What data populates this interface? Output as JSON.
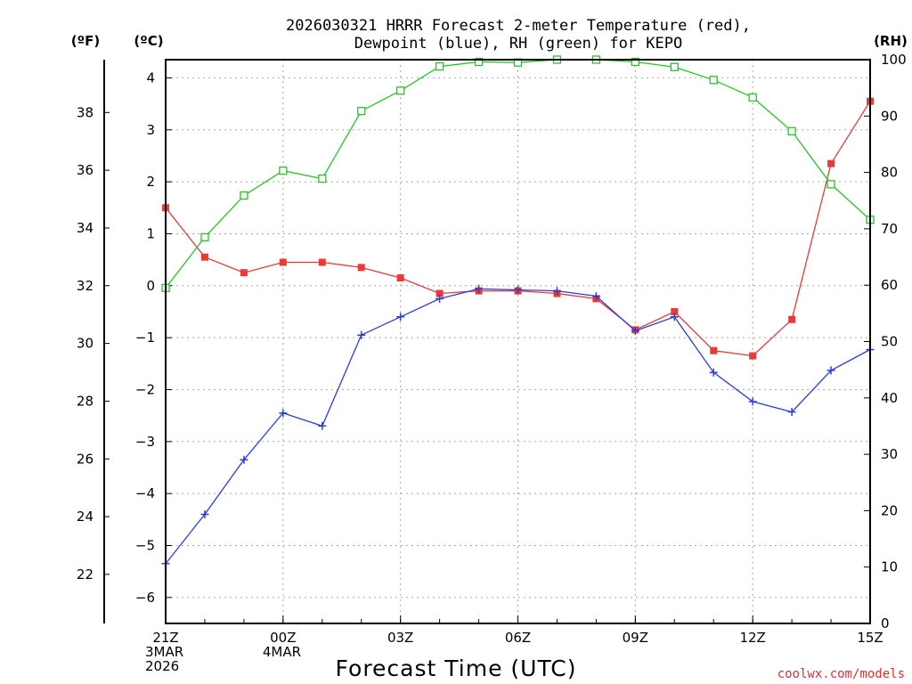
{
  "chart_data": {
    "type": "line",
    "title_lines": [
      "2026030321 HRRR Forecast 2-meter Temperature (red),",
      "Dewpoint (blue), RH (green) for KEPO"
    ],
    "axis_units": {
      "fahrenheit": "(ºF)",
      "celsius": "(ºC)",
      "rh": "(RH)"
    },
    "xlabel": "Forecast Time (UTC)",
    "credit": "coolwx.com/models",
    "x_hours": [
      0,
      1,
      2,
      3,
      4,
      5,
      6,
      7,
      8,
      9,
      10,
      11,
      12,
      13,
      14,
      15,
      16,
      17,
      18
    ],
    "xlim": [
      0,
      18
    ],
    "x_ticks": [
      {
        "hour": 0,
        "lines": [
          "21Z",
          "3MAR",
          "2026"
        ]
      },
      {
        "hour": 3,
        "lines": [
          "00Z",
          "4MAR"
        ]
      },
      {
        "hour": 6,
        "lines": [
          "03Z"
        ]
      },
      {
        "hour": 9,
        "lines": [
          "06Z"
        ]
      },
      {
        "hour": 12,
        "lines": [
          "09Z"
        ]
      },
      {
        "hour": 15,
        "lines": [
          "12Z"
        ]
      },
      {
        "hour": 18,
        "lines": [
          "15Z"
        ]
      }
    ],
    "celsius_ylim": [
      -6.5,
      4.35
    ],
    "celsius_ticks": [
      "4",
      "3",
      "2",
      "1",
      "0",
      "−1",
      "−2",
      "−3",
      "−4",
      "−5",
      "−6"
    ],
    "fahrenheit_ticks": [
      "38",
      "36",
      "34",
      "32",
      "30",
      "28",
      "26",
      "24",
      "22"
    ],
    "rh_ylim": [
      0,
      100
    ],
    "rh_ticks": [
      "100",
      "90",
      "80",
      "70",
      "60",
      "50",
      "40",
      "30",
      "20",
      "10",
      "0"
    ],
    "series": [
      {
        "name": "Temperature",
        "unit": "°C",
        "color": "#e83a3a",
        "marker": "filled-square",
        "values": [
          1.5,
          0.55,
          0.25,
          0.45,
          0.45,
          0.35,
          0.15,
          -0.15,
          -0.1,
          -0.1,
          -0.15,
          -0.25,
          -0.85,
          -0.5,
          -1.25,
          -1.35,
          -0.65,
          2.35,
          3.55
        ]
      },
      {
        "name": "Dewpoint",
        "unit": "°C",
        "color": "#2a3de0",
        "marker": "plus",
        "values": [
          -5.35,
          -4.4,
          -3.35,
          -2.45,
          -2.7,
          -0.95,
          -0.6,
          -0.25,
          -0.06,
          -0.08,
          -0.1,
          -0.2,
          -0.87,
          -0.6,
          -1.67,
          -2.23,
          -2.43,
          -1.63,
          -1.23
        ]
      },
      {
        "name": "RH",
        "unit": "%",
        "color": "#22c822",
        "marker": "open-square",
        "values": [
          59.5,
          68.5,
          75.9,
          80.3,
          78.9,
          90.9,
          94.5,
          98.8,
          99.6,
          99.5,
          100,
          100,
          99.6,
          98.7,
          96.4,
          93.3,
          87.3,
          77.9,
          71.6
        ]
      }
    ]
  }
}
